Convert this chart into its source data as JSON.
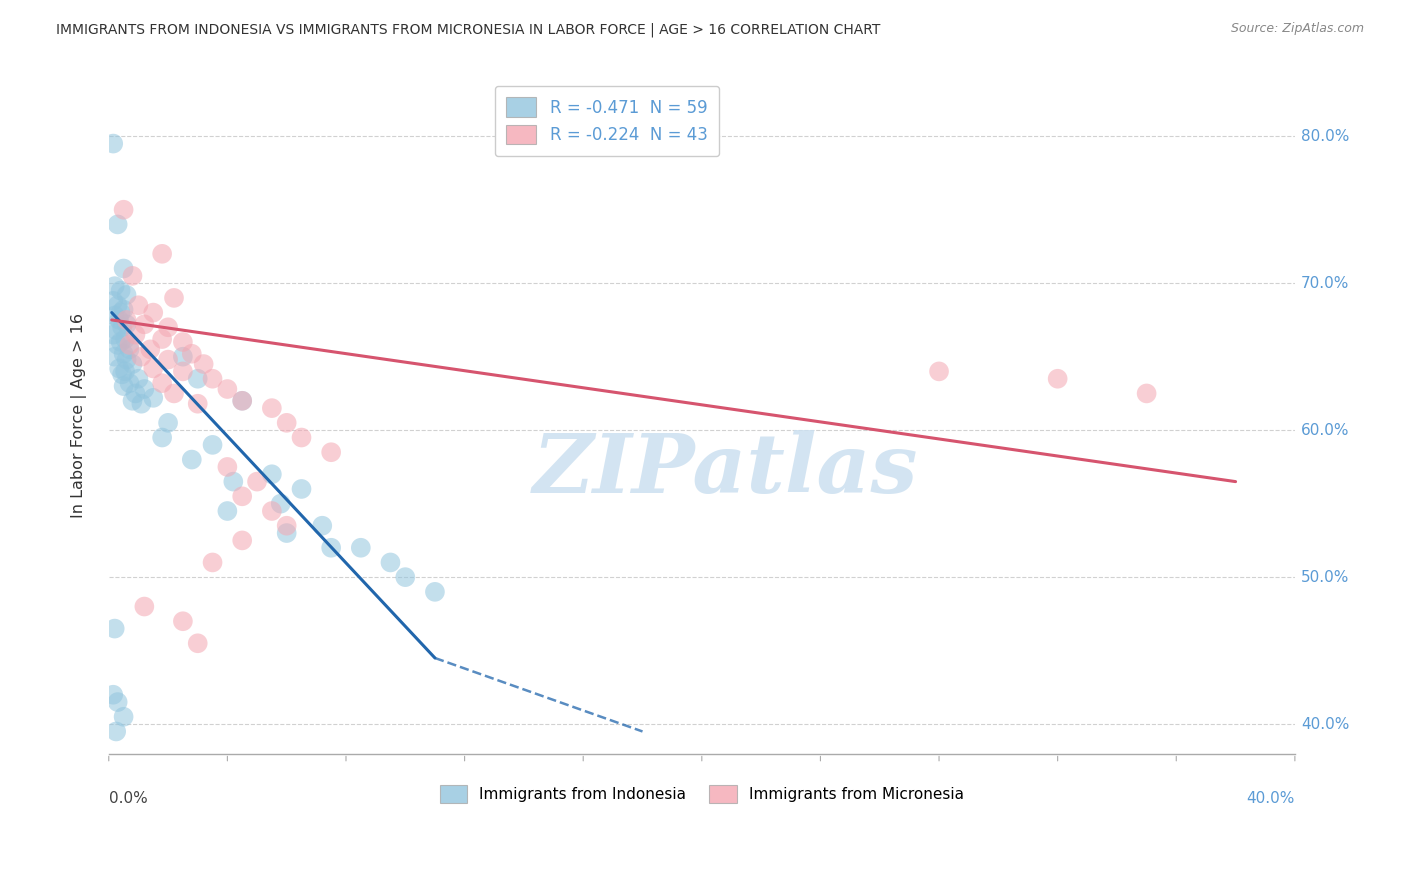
{
  "title": "IMMIGRANTS FROM INDONESIA VS IMMIGRANTS FROM MICRONESIA IN LABOR FORCE | AGE > 16 CORRELATION CHART",
  "source": "Source: ZipAtlas.com",
  "ylabel": "In Labor Force | Age > 16",
  "xlim": [
    0.0,
    40.0
  ],
  "ylim": [
    38.0,
    84.0
  ],
  "yticks": [
    40,
    50,
    60,
    70,
    80
  ],
  "indonesia_color": "#92c5de",
  "micronesia_color": "#f4a7b2",
  "indonesia_R": -0.471,
  "indonesia_N": 59,
  "micronesia_R": -0.224,
  "micronesia_N": 43,
  "watermark": "ZIPatlas",
  "background_color": "#ffffff",
  "grid_color": "#cccccc",
  "indonesia_points": [
    [
      0.15,
      79.5
    ],
    [
      0.3,
      74.0
    ],
    [
      0.5,
      71.0
    ],
    [
      0.2,
      69.8
    ],
    [
      0.4,
      69.5
    ],
    [
      0.6,
      69.2
    ],
    [
      0.15,
      68.8
    ],
    [
      0.3,
      68.5
    ],
    [
      0.5,
      68.2
    ],
    [
      0.4,
      68.0
    ],
    [
      0.2,
      67.8
    ],
    [
      0.35,
      67.5
    ],
    [
      0.6,
      67.2
    ],
    [
      0.45,
      67.0
    ],
    [
      0.25,
      66.8
    ],
    [
      0.15,
      66.5
    ],
    [
      0.55,
      66.2
    ],
    [
      0.4,
      66.0
    ],
    [
      0.3,
      65.8
    ],
    [
      0.7,
      65.5
    ],
    [
      0.5,
      65.2
    ],
    [
      0.2,
      65.0
    ],
    [
      0.6,
      64.8
    ],
    [
      0.8,
      64.5
    ],
    [
      0.35,
      64.2
    ],
    [
      0.55,
      64.0
    ],
    [
      0.45,
      63.8
    ],
    [
      1.0,
      63.5
    ],
    [
      0.7,
      63.2
    ],
    [
      0.5,
      63.0
    ],
    [
      1.2,
      62.8
    ],
    [
      0.9,
      62.5
    ],
    [
      1.5,
      62.2
    ],
    [
      0.8,
      62.0
    ],
    [
      1.1,
      61.8
    ],
    [
      2.5,
      65.0
    ],
    [
      3.0,
      63.5
    ],
    [
      4.5,
      62.0
    ],
    [
      2.0,
      60.5
    ],
    [
      3.5,
      59.0
    ],
    [
      5.5,
      57.0
    ],
    [
      6.5,
      56.0
    ],
    [
      4.0,
      54.5
    ],
    [
      6.0,
      53.0
    ],
    [
      7.5,
      52.0
    ],
    [
      0.2,
      46.5
    ],
    [
      0.15,
      42.0
    ],
    [
      0.3,
      41.5
    ],
    [
      0.5,
      40.5
    ],
    [
      0.25,
      39.5
    ],
    [
      1.8,
      59.5
    ],
    [
      2.8,
      58.0
    ],
    [
      4.2,
      56.5
    ],
    [
      5.8,
      55.0
    ],
    [
      7.2,
      53.5
    ],
    [
      8.5,
      52.0
    ],
    [
      9.5,
      51.0
    ],
    [
      10.0,
      50.0
    ],
    [
      11.0,
      49.0
    ]
  ],
  "micronesia_points": [
    [
      0.5,
      75.0
    ],
    [
      1.8,
      72.0
    ],
    [
      0.8,
      70.5
    ],
    [
      2.2,
      69.0
    ],
    [
      1.0,
      68.5
    ],
    [
      1.5,
      68.0
    ],
    [
      0.6,
      67.5
    ],
    [
      1.2,
      67.2
    ],
    [
      2.0,
      67.0
    ],
    [
      0.9,
      66.5
    ],
    [
      1.8,
      66.2
    ],
    [
      2.5,
      66.0
    ],
    [
      0.7,
      65.8
    ],
    [
      1.4,
      65.5
    ],
    [
      2.8,
      65.2
    ],
    [
      1.1,
      65.0
    ],
    [
      2.0,
      64.8
    ],
    [
      3.2,
      64.5
    ],
    [
      1.5,
      64.2
    ],
    [
      2.5,
      64.0
    ],
    [
      3.5,
      63.5
    ],
    [
      1.8,
      63.2
    ],
    [
      4.0,
      62.8
    ],
    [
      2.2,
      62.5
    ],
    [
      4.5,
      62.0
    ],
    [
      3.0,
      61.8
    ],
    [
      5.5,
      61.5
    ],
    [
      6.0,
      60.5
    ],
    [
      6.5,
      59.5
    ],
    [
      7.5,
      58.5
    ],
    [
      4.0,
      57.5
    ],
    [
      5.0,
      56.5
    ],
    [
      4.5,
      55.5
    ],
    [
      5.5,
      54.5
    ],
    [
      6.0,
      53.5
    ],
    [
      4.5,
      52.5
    ],
    [
      3.5,
      51.0
    ],
    [
      3.0,
      45.5
    ],
    [
      32.0,
      63.5
    ],
    [
      35.0,
      62.5
    ],
    [
      28.0,
      64.0
    ],
    [
      2.5,
      47.0
    ],
    [
      1.2,
      48.0
    ]
  ],
  "indonesia_line_solid": {
    "x0": 0.1,
    "y0": 68.0,
    "x1": 11.0,
    "y1": 44.5
  },
  "indonesia_line_dashed": {
    "x0": 11.0,
    "y0": 44.5,
    "x1": 18.0,
    "y1": 39.5
  },
  "micronesia_line": {
    "x0": 0.1,
    "y0": 67.5,
    "x1": 38.0,
    "y1": 56.5
  }
}
